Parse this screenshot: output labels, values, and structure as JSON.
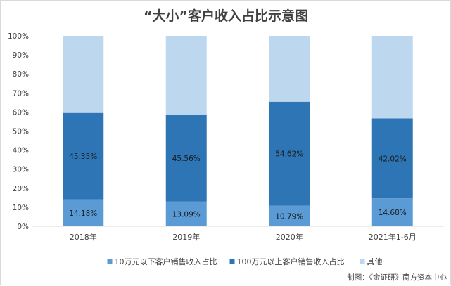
{
  "chart_data": {
    "type": "bar",
    "stacked": true,
    "title": "“大小”客户收入占比示意图",
    "categories": [
      "2018年",
      "2019年",
      "2020年",
      "2021年1-6月"
    ],
    "series": [
      {
        "name": "10万元以下客户销售收入占比",
        "values": [
          14.18,
          13.09,
          10.79,
          14.68
        ],
        "labels": [
          "14.18%",
          "13.09%",
          "10.79%",
          "14.68%"
        ],
        "color": "#5b9bd5"
      },
      {
        "name": "100万元以上客户销售收入占比",
        "values": [
          45.35,
          45.56,
          54.62,
          42.02
        ],
        "labels": [
          "45.35%",
          "45.56%",
          "54.62%",
          "42.02%"
        ],
        "color": "#2e75b6"
      },
      {
        "name": "其他",
        "values": [
          40.47,
          41.35,
          34.59,
          43.3
        ],
        "labels": [],
        "color": "#bdd7ee"
      }
    ],
    "yticks": [
      "0%",
      "10%",
      "20%",
      "30%",
      "40%",
      "50%",
      "60%",
      "70%",
      "80%",
      "90%",
      "100%"
    ],
    "ylim": [
      0,
      100
    ],
    "grid": false,
    "legend": "bottom"
  },
  "source": "制图：《金证研》南方资本中心"
}
